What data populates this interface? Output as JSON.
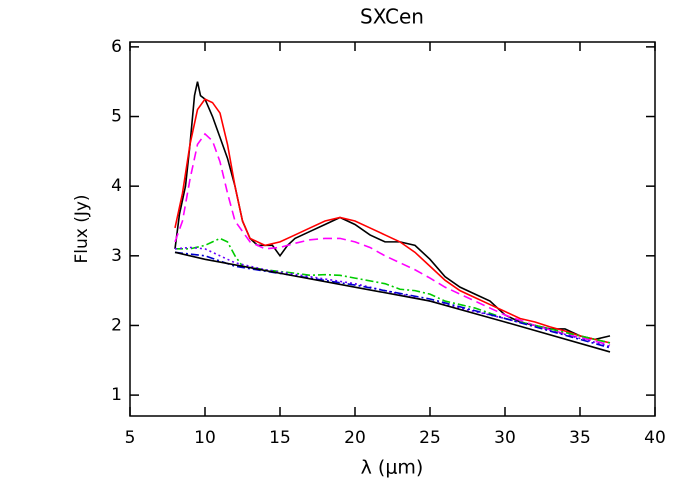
{
  "chart_data": {
    "type": "line",
    "title": "SXCen",
    "x_label": "λ (μm)",
    "y_label": "Flux (Jy)",
    "xlim": [
      5,
      40
    ],
    "ylim": [
      0.7,
      6.07
    ],
    "xticks": [
      5,
      10,
      15,
      20,
      25,
      30,
      35,
      40
    ],
    "yticks": [
      1,
      2,
      3,
      4,
      5,
      6
    ],
    "series": [
      {
        "color": "#000000",
        "style": "solid",
        "x": [
          8,
          8.3,
          8.7,
          9,
          9.3,
          9.5,
          9.7,
          10,
          10.5,
          11,
          11.5,
          12,
          12.5,
          13,
          13.5,
          14,
          14.5,
          15,
          15.5,
          16,
          17,
          18,
          19,
          20,
          21,
          22,
          23,
          24,
          25,
          26,
          27,
          28,
          29,
          30,
          31,
          32,
          33,
          34,
          35,
          36,
          37
        ],
        "values": [
          3.1,
          3.6,
          4.0,
          4.6,
          5.3,
          5.5,
          5.3,
          5.25,
          5.0,
          4.7,
          4.4,
          4.0,
          3.5,
          3.25,
          3.15,
          3.15,
          3.15,
          3.0,
          3.15,
          3.25,
          3.35,
          3.45,
          3.55,
          3.45,
          3.3,
          3.2,
          3.2,
          3.15,
          2.95,
          2.7,
          2.55,
          2.45,
          2.35,
          2.15,
          2.05,
          2.0,
          1.95,
          1.95,
          1.85,
          1.8,
          1.85
        ]
      },
      {
        "color": "#ff0000",
        "style": "solid",
        "x": [
          8,
          8.5,
          9,
          9.5,
          10,
          10.5,
          11,
          11.5,
          12,
          12.5,
          13,
          14,
          15,
          16,
          17,
          18,
          19,
          20,
          21,
          22,
          23,
          24,
          25,
          26,
          27,
          28,
          29,
          30,
          31,
          32,
          33,
          34,
          35,
          36,
          37
        ],
        "values": [
          3.4,
          3.9,
          4.6,
          5.1,
          5.25,
          5.2,
          5.05,
          4.6,
          4.0,
          3.5,
          3.25,
          3.15,
          3.2,
          3.3,
          3.4,
          3.5,
          3.55,
          3.5,
          3.4,
          3.3,
          3.2,
          3.05,
          2.85,
          2.65,
          2.5,
          2.4,
          2.3,
          2.2,
          2.1,
          2.05,
          1.98,
          1.92,
          1.85,
          1.8,
          1.75
        ]
      },
      {
        "color": "#ff00ff",
        "style": "dashed",
        "x": [
          8,
          8.5,
          9,
          9.5,
          10,
          10.5,
          11,
          11.5,
          12,
          13,
          14,
          15,
          16,
          17,
          18,
          19,
          20,
          21,
          22,
          23,
          24,
          25,
          26,
          27,
          28,
          29,
          30,
          32,
          34,
          37
        ],
        "values": [
          3.2,
          3.5,
          4.1,
          4.6,
          4.75,
          4.65,
          4.35,
          3.9,
          3.5,
          3.2,
          3.1,
          3.12,
          3.18,
          3.23,
          3.25,
          3.25,
          3.2,
          3.12,
          3.0,
          2.9,
          2.8,
          2.68,
          2.55,
          2.45,
          2.35,
          2.25,
          2.15,
          2.0,
          1.88,
          1.72
        ]
      },
      {
        "color": "#00cc00",
        "style": "dashdot",
        "x": [
          8,
          9,
          10,
          10.5,
          11,
          11.5,
          12,
          12.5,
          14,
          16,
          17,
          18,
          19,
          20,
          22,
          23,
          24,
          25,
          26,
          28,
          30,
          32,
          34,
          36,
          37
        ],
        "values": [
          3.1,
          3.1,
          3.15,
          3.2,
          3.25,
          3.2,
          3.0,
          2.85,
          2.8,
          2.75,
          2.72,
          2.73,
          2.72,
          2.68,
          2.6,
          2.52,
          2.5,
          2.45,
          2.35,
          2.25,
          2.1,
          2.0,
          1.9,
          1.8,
          1.75
        ]
      },
      {
        "color": "#6a00ff",
        "style": "dotted",
        "x": [
          8,
          9,
          10,
          11,
          12,
          14,
          20,
          25,
          30,
          37
        ],
        "values": [
          3.1,
          3.12,
          3.1,
          3.0,
          2.9,
          2.8,
          2.6,
          2.35,
          2.1,
          1.7
        ]
      },
      {
        "color": "#0000cc",
        "style": "dashdot",
        "x": [
          8,
          10,
          12,
          14,
          20,
          25,
          30,
          37
        ],
        "values": [
          3.05,
          3.0,
          2.85,
          2.78,
          2.58,
          2.38,
          2.1,
          1.68
        ]
      },
      {
        "color": "#000000",
        "style": "solid",
        "x": [
          8,
          10,
          15,
          20,
          25,
          30,
          37
        ],
        "values": [
          3.05,
          2.95,
          2.75,
          2.55,
          2.35,
          2.05,
          1.62
        ]
      }
    ]
  }
}
